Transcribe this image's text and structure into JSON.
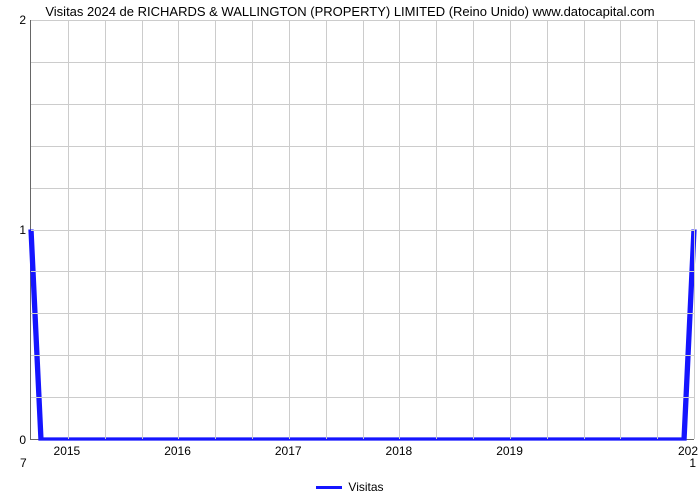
{
  "chart": {
    "type": "line",
    "title": "Visitas 2024 de RICHARDS & WALLINGTON (PROPERTY) LIMITED (Reino Unido) www.datocapital.com",
    "title_fontsize": 13,
    "background_color": "#ffffff",
    "grid_color": "#cccccc",
    "axis_color": "#666666",
    "line_color": "#1515ff",
    "line_width": 2,
    "ylim": [
      0,
      2
    ],
    "ytick_step": 1,
    "minor_y_count": 4,
    "xticks": [
      "2015",
      "2016",
      "2017",
      "2018",
      "2019",
      "202"
    ],
    "x_grid_count": 18,
    "ylabels": [
      "0",
      "1",
      "2"
    ],
    "corner_bottom_left": "7",
    "corner_bottom_right": "1",
    "series": {
      "name": "Visitas",
      "points": [
        [
          0.0,
          1.0
        ],
        [
          0.015,
          0.0
        ],
        [
          0.985,
          0.0
        ],
        [
          1.0,
          1.0
        ]
      ]
    },
    "legend_label": "Visitas"
  }
}
